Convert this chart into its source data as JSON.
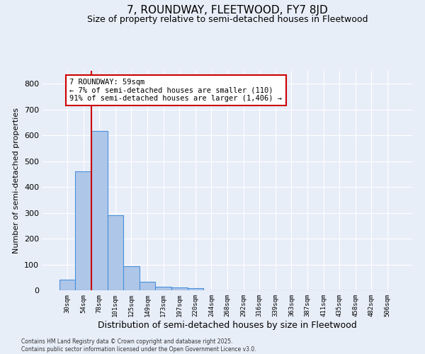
{
  "title": "7, ROUNDWAY, FLEETWOOD, FY7 8JD",
  "subtitle": "Size of property relative to semi-detached houses in Fleetwood",
  "xlabel": "Distribution of semi-detached houses by size in Fleetwood",
  "ylabel": "Number of semi-detached properties",
  "categories": [
    "30sqm",
    "54sqm",
    "78sqm",
    "101sqm",
    "125sqm",
    "149sqm",
    "173sqm",
    "197sqm",
    "220sqm",
    "244sqm",
    "268sqm",
    "292sqm",
    "316sqm",
    "339sqm",
    "363sqm",
    "387sqm",
    "411sqm",
    "435sqm",
    "458sqm",
    "482sqm",
    "506sqm"
  ],
  "values": [
    40,
    460,
    617,
    290,
    93,
    32,
    15,
    10,
    7,
    0,
    0,
    0,
    0,
    0,
    0,
    0,
    0,
    0,
    0,
    0,
    0
  ],
  "bar_color": "#aec6e8",
  "bar_edge_color": "#4a90d9",
  "background_color": "#e8eef8",
  "grid_color": "#ffffff",
  "annotation_text": "7 ROUNDWAY: 59sqm\n← 7% of semi-detached houses are smaller (110)\n91% of semi-detached houses are larger (1,406) →",
  "vline_x": 1.5,
  "vline_color": "#cc0000",
  "annotation_box_color": "#cc0000",
  "ylim": [
    0,
    850
  ],
  "yticks": [
    0,
    100,
    200,
    300,
    400,
    500,
    600,
    700,
    800
  ],
  "footer": "Contains HM Land Registry data © Crown copyright and database right 2025.\nContains public sector information licensed under the Open Government Licence v3.0.",
  "title_fontsize": 11,
  "subtitle_fontsize": 9,
  "xlabel_fontsize": 9,
  "ylabel_fontsize": 8,
  "annotation_fontsize": 7.5
}
